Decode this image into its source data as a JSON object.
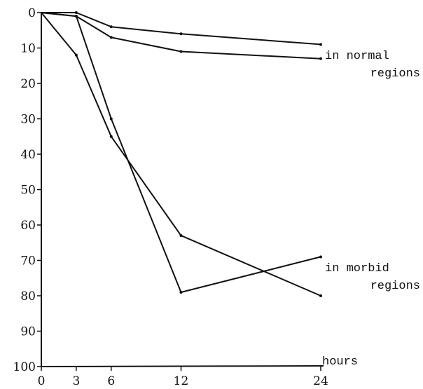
{
  "chart_data": {
    "type": "line",
    "title": "",
    "xlabel": "hours",
    "ylabel": "",
    "x_ticks": [
      0,
      3,
      6,
      12,
      24
    ],
    "y_ticks": [
      0,
      10,
      20,
      30,
      40,
      50,
      60,
      70,
      80,
      90,
      100
    ],
    "xlim": [
      0,
      24
    ],
    "ylim": [
      0,
      100
    ],
    "y_inverted": true,
    "grid": false,
    "series": [
      {
        "values": [
          [
            0,
            0
          ],
          [
            3,
            0
          ],
          [
            6,
            4
          ],
          [
            12,
            6
          ],
          [
            24,
            9
          ]
        ]
      },
      {
        "values": [
          [
            0,
            0
          ],
          [
            3,
            1
          ],
          [
            6,
            7
          ],
          [
            12,
            11
          ],
          [
            24,
            13
          ]
        ]
      },
      {
        "values": [
          [
            0,
            0
          ],
          [
            3,
            12
          ],
          [
            6,
            35
          ],
          [
            12,
            63
          ],
          [
            24,
            80
          ]
        ]
      },
      {
        "values": [
          [
            0,
            0
          ],
          [
            3,
            1
          ],
          [
            6,
            30
          ],
          [
            12,
            79
          ],
          [
            24,
            69
          ]
        ]
      }
    ],
    "annotations": [
      {
        "lines": [
          "in normal",
          "regions"
        ],
        "series_group": "upper"
      },
      {
        "lines": [
          "in morbid",
          "regions"
        ],
        "series_group": "lower"
      }
    ]
  }
}
